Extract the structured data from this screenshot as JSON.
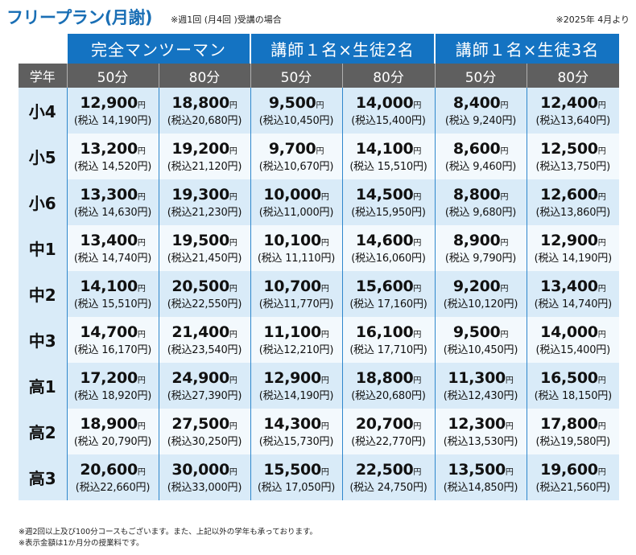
{
  "header": {
    "title": "フリープラン(月謝)",
    "note": "※週1回 (月4回 )受講の場合",
    "date": "※2025年 4月より"
  },
  "columns": {
    "grade_header": "学年",
    "plans": [
      "完全マンツーマン",
      "講師１名×生徒2名",
      "講師１名×生徒3名"
    ],
    "durations": [
      "50分",
      "80分",
      "50分",
      "80分",
      "50分",
      "80分"
    ]
  },
  "yen": "円",
  "rows": [
    {
      "grade": "小4",
      "cells": [
        {
          "price": "12,900",
          "tax": "(税込 14,190円)"
        },
        {
          "price": "18,800",
          "tax": "(税込20,680円)"
        },
        {
          "price": "9,500",
          "tax": "(税込10,450円)"
        },
        {
          "price": "14,000",
          "tax": "(税込15,400円)"
        },
        {
          "price": "8,400",
          "tax": "(税込  9,240円)"
        },
        {
          "price": "12,400",
          "tax": "(税込13,640円)"
        }
      ]
    },
    {
      "grade": "小5",
      "cells": [
        {
          "price": "13,200",
          "tax": "(税込 14,520円)"
        },
        {
          "price": "19,200",
          "tax": "(税込21,120円)"
        },
        {
          "price": "9,700",
          "tax": "(税込10,670円)"
        },
        {
          "price": "14,100",
          "tax": "(税込 15,510円)"
        },
        {
          "price": "8,600",
          "tax": "(税込  9,460円)"
        },
        {
          "price": "12,500",
          "tax": "(税込13,750円)"
        }
      ]
    },
    {
      "grade": "小6",
      "cells": [
        {
          "price": "13,300",
          "tax": "(税込 14,630円)"
        },
        {
          "price": "19,300",
          "tax": "(税込21,230円)"
        },
        {
          "price": "10,000",
          "tax": "(税込11,000円)"
        },
        {
          "price": "14,500",
          "tax": "(税込15,950円)"
        },
        {
          "price": "8,800",
          "tax": "(税込  9,680円)"
        },
        {
          "price": "12,600",
          "tax": "(税込13,860円)"
        }
      ]
    },
    {
      "grade": "中1",
      "cells": [
        {
          "price": "13,400",
          "tax": "(税込 14,740円)"
        },
        {
          "price": "19,500",
          "tax": "(税込21,450円)"
        },
        {
          "price": "10,100",
          "tax": "(税込 11,110円)"
        },
        {
          "price": "14,600",
          "tax": "(税込16,060円)"
        },
        {
          "price": "8,900",
          "tax": "(税込  9,790円)"
        },
        {
          "price": "12,900",
          "tax": "(税込 14,190円)"
        }
      ]
    },
    {
      "grade": "中2",
      "cells": [
        {
          "price": "14,100",
          "tax": "(税込 15,510円)"
        },
        {
          "price": "20,500",
          "tax": "(税込22,550円)"
        },
        {
          "price": "10,700",
          "tax": "(税込11,770円)"
        },
        {
          "price": "15,600",
          "tax": "(税込 17,160円)"
        },
        {
          "price": "9,200",
          "tax": "(税込10,120円)"
        },
        {
          "price": "13,400",
          "tax": "(税込 14,740円)"
        }
      ]
    },
    {
      "grade": "中3",
      "cells": [
        {
          "price": "14,700",
          "tax": "(税込 16,170円)"
        },
        {
          "price": "21,400",
          "tax": "(税込23,540円)"
        },
        {
          "price": "11,100",
          "tax": "(税込12,210円)"
        },
        {
          "price": "16,100",
          "tax": "(税込 17,710円)"
        },
        {
          "price": "9,500",
          "tax": "(税込10,450円)"
        },
        {
          "price": "14,000",
          "tax": "(税込15,400円)"
        }
      ]
    },
    {
      "grade": "高1",
      "cells": [
        {
          "price": "17,200",
          "tax": "(税込 18,920円)"
        },
        {
          "price": "24,900",
          "tax": "(税込27,390円)"
        },
        {
          "price": "12,900",
          "tax": "(税込14,190円)"
        },
        {
          "price": "18,800",
          "tax": "(税込20,680円)"
        },
        {
          "price": "11,300",
          "tax": "(税込12,430円)"
        },
        {
          "price": "16,500",
          "tax": "(税込 18,150円)"
        }
      ]
    },
    {
      "grade": "高2",
      "cells": [
        {
          "price": "18,900",
          "tax": "(税込 20,790円)"
        },
        {
          "price": "27,500",
          "tax": "(税込30,250円)"
        },
        {
          "price": "14,300",
          "tax": "(税込15,730円)"
        },
        {
          "price": "20,700",
          "tax": "(税込22,770円)"
        },
        {
          "price": "12,300",
          "tax": "(税込13,530円)"
        },
        {
          "price": "17,800",
          "tax": "(税込19,580円)"
        }
      ]
    },
    {
      "grade": "高3",
      "cells": [
        {
          "price": "20,600",
          "tax": "(税込22,660円)"
        },
        {
          "price": "30,000",
          "tax": "(税込33,000円)"
        },
        {
          "price": "15,500",
          "tax": "(税込 17,050円)"
        },
        {
          "price": "22,500",
          "tax": "(税込 24,750円)"
        },
        {
          "price": "13,500",
          "tax": "(税込14,850円)"
        },
        {
          "price": "19,600",
          "tax": "(税込21,560円)"
        }
      ]
    }
  ],
  "footnotes": [
    "※週2回以上及び100分コースもございます。また、上記以外の学年も承っております。",
    "※表示金額は1か月分の授業料です。"
  ]
}
